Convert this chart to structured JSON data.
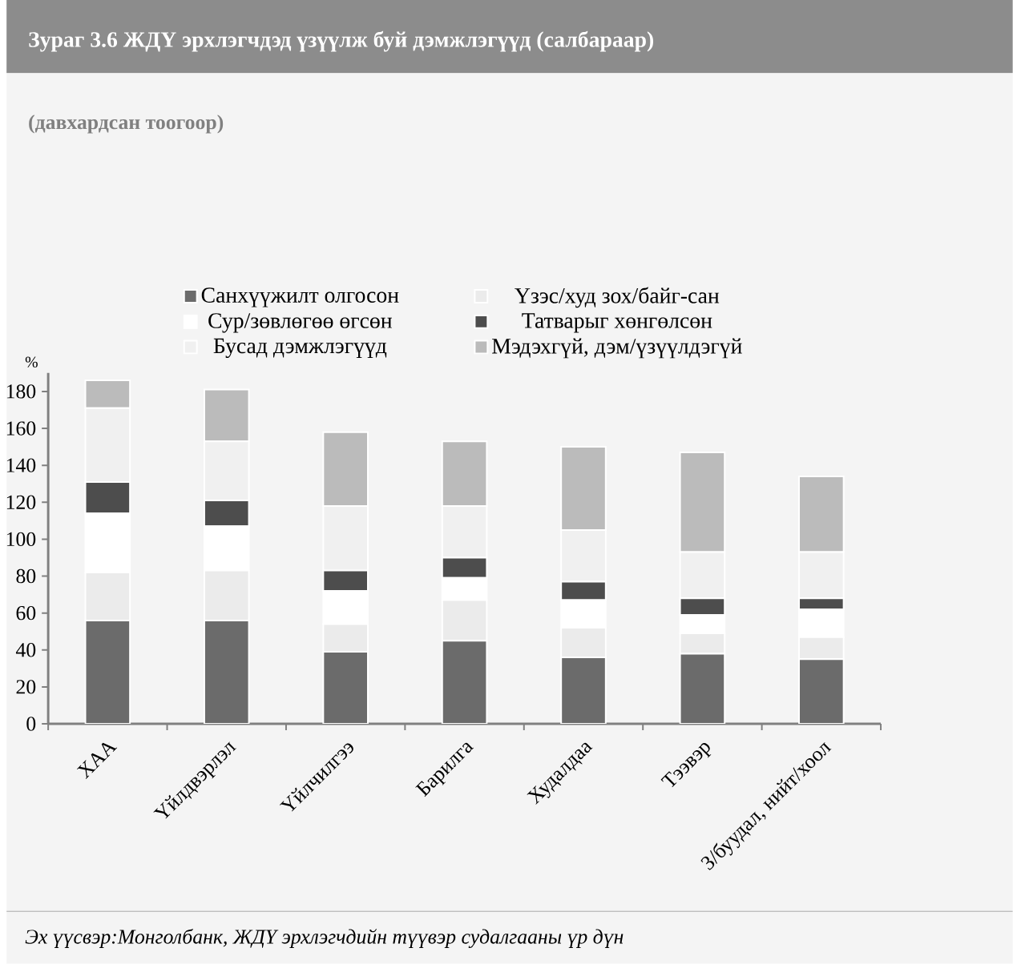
{
  "chart_data": {
    "type": "bar",
    "stacked": true,
    "title": "Зураг 3.6 ЖДҮ эрхлэгчдэд үзүүлж буй дэмжлэгүүд (салбараар)",
    "subtitle": "(давхардсан тоогоор)",
    "ylabel": "%",
    "annotations": [
      "Эх үүсвэр:Монголбанк, ЖДҮ эрхлэгчдийн түүвэр судалгааны үр дүн"
    ],
    "categories": [
      "ХАА",
      "Үйлдвэрлэл",
      "Үйлчилгээ",
      "Барилга",
      "Худалдаа",
      "Тээвэр",
      "З/буудал, нийт/хоол"
    ],
    "ylim": [
      0,
      190
    ],
    "yticks": [
      0,
      20,
      40,
      60,
      80,
      100,
      120,
      140,
      160,
      180
    ],
    "legend": "top",
    "grid": false,
    "series": [
      {
        "name": "Санхүүжилт олгосон",
        "color": "#6b6b6b",
        "values": [
          56,
          56,
          39,
          45,
          36,
          38,
          35
        ]
      },
      {
        "name": "Үзэс/худ зох/байг-сан",
        "color": "#ebebeb",
        "values": [
          26,
          27,
          15,
          22,
          16,
          11,
          12
        ]
      },
      {
        "name": "Сур/зөвлөгөө өгсөн",
        "color": "#ffffff",
        "values": [
          32,
          24,
          18,
          12,
          15,
          10,
          15
        ]
      },
      {
        "name": "Татварыг хөнгөлсөн",
        "color": "#4d4d4d",
        "values": [
          17,
          14,
          11,
          11,
          10,
          9,
          6
        ]
      },
      {
        "name": "Бусад дэмжлэгүүд",
        "color": "#f0f0f0",
        "values": [
          40,
          32,
          35,
          28,
          28,
          25,
          25
        ]
      },
      {
        "name": "Мэдэхгүй, дэм/үзүүлдэгүй",
        "color": "#bbbbbb",
        "values": [
          15,
          28,
          40,
          35,
          45,
          54,
          41
        ]
      }
    ]
  }
}
